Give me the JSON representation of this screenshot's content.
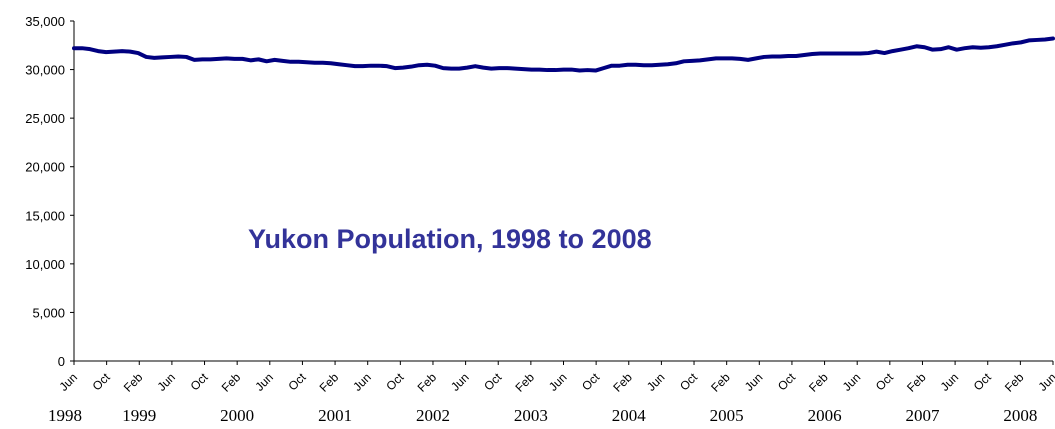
{
  "chart_data": {
    "type": "line",
    "title": "Yukon Population, 1998 to 2008",
    "xlabel": "",
    "ylabel": "",
    "ylim": [
      0,
      35000
    ],
    "yticks": [
      "0",
      "5,000",
      "10,000",
      "15,000",
      "20,000",
      "25,000",
      "30,000",
      "35,000"
    ],
    "xtick_labels": [
      "Jun",
      "Oct",
      "Feb",
      "Jun",
      "Oct",
      "Feb",
      "Jun",
      "Oct",
      "Feb",
      "Jun",
      "Oct",
      "Feb",
      "Jun",
      "Oct",
      "Feb",
      "Jun",
      "Oct",
      "Feb",
      "Jun",
      "Oct",
      "Feb",
      "Jun",
      "Oct",
      "Feb",
      "Jun",
      "Oct",
      "Feb",
      "Jun",
      "Oct",
      "Feb",
      "Jun"
    ],
    "year_labels": [
      "1998",
      "1999",
      "2000",
      "2001",
      "2002",
      "2003",
      "2004",
      "2005",
      "2006",
      "2007",
      "2008"
    ],
    "grid": false,
    "legend": "none",
    "line_color": "#000080",
    "title_color": "#333399",
    "series": [
      {
        "x_start": "1998-06",
        "x_end": "2008-06",
        "values": [
          32200,
          32200,
          32100,
          31900,
          31800,
          31850,
          31900,
          31850,
          31700,
          31300,
          31200,
          31250,
          31300,
          31350,
          31300,
          31000,
          31050,
          31050,
          31100,
          31150,
          31100,
          31100,
          30950,
          31050,
          30850,
          31000,
          30900,
          30800,
          30800,
          30750,
          30700,
          30700,
          30650,
          30550,
          30450,
          30350,
          30350,
          30400,
          30400,
          30350,
          30150,
          30200,
          30300,
          30450,
          30500,
          30400,
          30150,
          30100,
          30100,
          30200,
          30350,
          30200,
          30100,
          30150,
          30150,
          30100,
          30050,
          30000,
          30000,
          29950,
          29950,
          30000,
          30000,
          29900,
          29950,
          29900,
          30150,
          30400,
          30400,
          30500,
          30500,
          30450,
          30450,
          30500,
          30550,
          30650,
          30850,
          30900,
          30950,
          31050,
          31150,
          31150,
          31150,
          31100,
          31000,
          31150,
          31300,
          31350,
          31350,
          31400,
          31400,
          31500,
          31600,
          31650,
          31650,
          31650,
          31650,
          31650,
          31650,
          31700,
          31850,
          31700,
          31900,
          32050,
          32200,
          32400,
          32300,
          32050,
          32100,
          32300,
          32050,
          32200,
          32300,
          32250,
          32300,
          32400,
          32550,
          32700,
          32800,
          33000,
          33050,
          33100,
          33200
        ]
      }
    ]
  }
}
